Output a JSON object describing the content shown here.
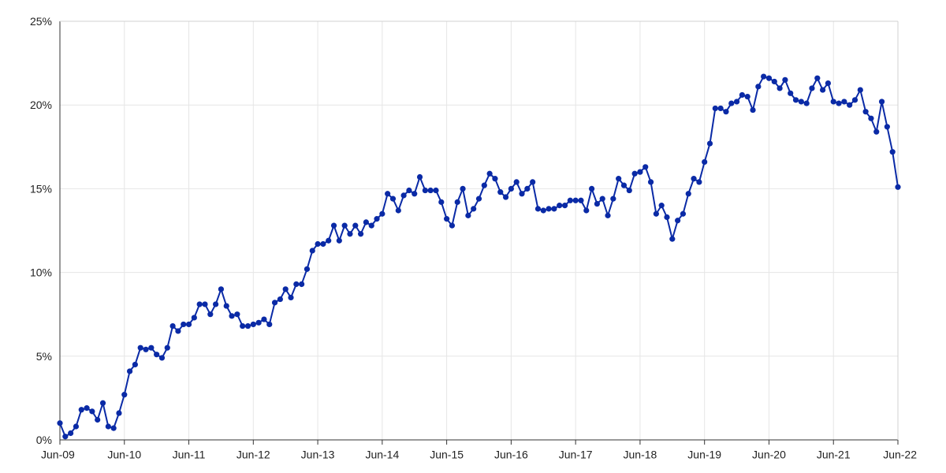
{
  "chart_data": {
    "type": "line",
    "title": "",
    "xlabel": "",
    "ylabel": "",
    "ylim": [
      0,
      25
    ],
    "grid": true,
    "legend": "none",
    "colors": {
      "series": "#0a2aa6",
      "grid": "#e6e6e6",
      "axis": "#333333"
    },
    "x_ticks": [
      "Jun-09",
      "Jun-10",
      "Jun-11",
      "Jun-12",
      "Jun-13",
      "Jun-14",
      "Jun-15",
      "Jun-16",
      "Jun-17",
      "Jun-18",
      "Jun-19",
      "Jun-20",
      "Jun-21",
      "Jun-22"
    ],
    "y_ticks": [
      {
        "value": 0,
        "label": "0%"
      },
      {
        "value": 5,
        "label": "5%"
      },
      {
        "value": 10,
        "label": "10%"
      },
      {
        "value": 15,
        "label": "15%"
      },
      {
        "value": 20,
        "label": "20%"
      },
      {
        "value": 25,
        "label": "25%"
      }
    ],
    "series": [
      {
        "values": [
          1.0,
          0.2,
          0.4,
          0.8,
          1.8,
          1.9,
          1.7,
          1.2,
          2.2,
          0.8,
          0.7,
          1.6,
          2.7,
          4.1,
          4.5,
          5.5,
          5.4,
          5.5,
          5.1,
          4.9,
          5.5,
          6.8,
          6.5,
          6.9,
          6.9,
          7.3,
          8.1,
          8.1,
          7.5,
          8.1,
          9.0,
          8.0,
          7.4,
          7.5,
          6.8,
          6.8,
          6.9,
          7.0,
          7.2,
          6.9,
          8.2,
          8.4,
          9.0,
          8.5,
          9.3,
          9.3,
          10.2,
          11.3,
          11.7,
          11.7,
          11.9,
          12.8,
          11.9,
          12.8,
          12.3,
          12.8,
          12.3,
          13.0,
          12.8,
          13.2,
          13.5,
          14.7,
          14.4,
          13.7,
          14.6,
          14.9,
          14.7,
          15.7,
          14.9,
          14.9,
          14.9,
          14.2,
          13.2,
          12.8,
          14.2,
          15.0,
          13.4,
          13.8,
          14.4,
          15.2,
          15.9,
          15.6,
          14.8,
          14.5,
          15.0,
          15.4,
          14.7,
          15.0,
          15.4,
          13.8,
          13.7,
          13.8,
          13.8,
          14.0,
          14.0,
          14.3,
          14.3,
          14.3,
          13.7,
          15.0,
          14.1,
          14.4,
          13.4,
          14.4,
          15.6,
          15.2,
          14.9,
          15.9,
          16.0,
          16.3,
          15.4,
          13.5,
          14.0,
          13.3,
          12.0,
          13.1,
          13.5,
          14.7,
          15.6,
          15.4,
          16.6,
          17.7,
          19.8,
          19.8,
          19.6,
          20.1,
          20.2,
          20.6,
          20.5,
          19.7,
          21.1,
          21.7,
          21.6,
          21.4,
          21.0,
          21.5,
          20.7,
          20.3,
          20.2,
          20.1,
          21.0,
          21.6,
          20.9,
          21.3,
          20.2,
          20.1,
          20.2,
          20.0,
          20.3,
          20.9,
          19.6,
          19.2,
          18.4,
          20.2,
          18.7,
          17.2,
          15.1
        ]
      }
    ]
  }
}
